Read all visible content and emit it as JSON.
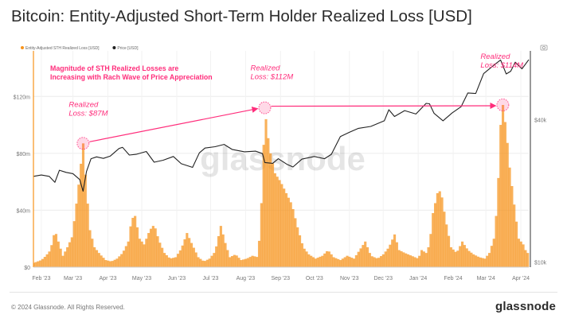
{
  "title": "Bitcoin: Entity-Adjusted Short-Term Holder Realized Loss [USD]",
  "footer": {
    "copyright": "© 2024 Glassnode. All Rights Reserved.",
    "brand": "glassnode"
  },
  "watermark": "glassnode",
  "colors": {
    "loss_bars": "#f7931a",
    "price_line": "#222222",
    "annotation": "#ff2d7b",
    "grid": "#ececec"
  },
  "chart_data": {
    "type": "bar",
    "title": "Bitcoin: Entity-Adjusted Short-Term Holder Realized Loss [USD]",
    "xlabel": "",
    "ylabel": "",
    "x_tick_labels": [
      "Feb '23",
      "Mar '23",
      "Apr '23",
      "May '23",
      "Jun '23",
      "Jul '23",
      "Aug '23",
      "Sep '23",
      "Oct '23",
      "Nov '23",
      "Dec '23",
      "Jan '24",
      "Feb '24",
      "Mar '24",
      "Apr '24"
    ],
    "x_range": [
      "2023-01-25",
      "2024-04-08"
    ],
    "left_axis": {
      "ylim": [
        0,
        152
      ],
      "ticks": [
        0,
        40,
        80,
        120
      ],
      "tick_labels": [
        "$0",
        "$40m",
        "$80m",
        "$120m"
      ]
    },
    "right_axis": {
      "scale": "log",
      "ylim": [
        9500,
        78000
      ],
      "ticks": [
        10000,
        40000
      ],
      "tick_labels": [
        "$10k",
        "$40k"
      ]
    },
    "grid": true,
    "legend": {
      "placement": "top-left"
    },
    "series": [
      {
        "name": "Entity-Adjusted STH Realized Loss [USD]",
        "type": "bar",
        "axis": "left",
        "color": "#f7931a",
        "points": [
          [
            "2023-01-25",
            3
          ],
          [
            "2023-02-01",
            5
          ],
          [
            "2023-02-05",
            8
          ],
          [
            "2023-02-09",
            12
          ],
          [
            "2023-02-13",
            26
          ],
          [
            "2023-02-16",
            18
          ],
          [
            "2023-02-20",
            8
          ],
          [
            "2023-02-24",
            14
          ],
          [
            "2023-02-28",
            21
          ],
          [
            "2023-03-03",
            38
          ],
          [
            "2023-03-06",
            58
          ],
          [
            "2023-03-09",
            80
          ],
          [
            "2023-03-10",
            87
          ],
          [
            "2023-03-13",
            54
          ],
          [
            "2023-03-16",
            26
          ],
          [
            "2023-03-20",
            14
          ],
          [
            "2023-03-25",
            9
          ],
          [
            "2023-03-30",
            5
          ],
          [
            "2023-04-04",
            4
          ],
          [
            "2023-04-09",
            6
          ],
          [
            "2023-04-14",
            10
          ],
          [
            "2023-04-19",
            18
          ],
          [
            "2023-04-22",
            34
          ],
          [
            "2023-04-25",
            36
          ],
          [
            "2023-04-29",
            20
          ],
          [
            "2023-05-03",
            16
          ],
          [
            "2023-05-08",
            26
          ],
          [
            "2023-05-12",
            30
          ],
          [
            "2023-05-16",
            19
          ],
          [
            "2023-05-21",
            10
          ],
          [
            "2023-05-26",
            6
          ],
          [
            "2023-05-31",
            7
          ],
          [
            "2023-06-05",
            13
          ],
          [
            "2023-06-10",
            24
          ],
          [
            "2023-06-14",
            17
          ],
          [
            "2023-06-20",
            7
          ],
          [
            "2023-06-25",
            4
          ],
          [
            "2023-06-30",
            6
          ],
          [
            "2023-07-05",
            11
          ],
          [
            "2023-07-10",
            29
          ],
          [
            "2023-07-14",
            17
          ],
          [
            "2023-07-18",
            7
          ],
          [
            "2023-07-23",
            9
          ],
          [
            "2023-07-28",
            5
          ],
          [
            "2023-08-02",
            6
          ],
          [
            "2023-08-07",
            8
          ],
          [
            "2023-08-12",
            7
          ],
          [
            "2023-08-14",
            30
          ],
          [
            "2023-08-16",
            60
          ],
          [
            "2023-08-18",
            112
          ],
          [
            "2023-08-20",
            96
          ],
          [
            "2023-08-23",
            80
          ],
          [
            "2023-08-27",
            66
          ],
          [
            "2023-09-01",
            60
          ],
          [
            "2023-09-06",
            52
          ],
          [
            "2023-09-11",
            44
          ],
          [
            "2023-09-16",
            28
          ],
          [
            "2023-09-21",
            14
          ],
          [
            "2023-09-26",
            9
          ],
          [
            "2023-10-02",
            6
          ],
          [
            "2023-10-08",
            8
          ],
          [
            "2023-10-13",
            12
          ],
          [
            "2023-10-18",
            7
          ],
          [
            "2023-10-24",
            5
          ],
          [
            "2023-10-30",
            8
          ],
          [
            "2023-11-05",
            6
          ],
          [
            "2023-11-10",
            12
          ],
          [
            "2023-11-15",
            18
          ],
          [
            "2023-11-20",
            8
          ],
          [
            "2023-11-26",
            6
          ],
          [
            "2023-12-01",
            9
          ],
          [
            "2023-12-06",
            14
          ],
          [
            "2023-12-11",
            23
          ],
          [
            "2023-12-15",
            12
          ],
          [
            "2023-12-20",
            10
          ],
          [
            "2023-12-26",
            8
          ],
          [
            "2024-01-01",
            6
          ],
          [
            "2024-01-04",
            12
          ],
          [
            "2024-01-08",
            10
          ],
          [
            "2024-01-11",
            16
          ],
          [
            "2024-01-14",
            38
          ],
          [
            "2024-01-18",
            52
          ],
          [
            "2024-01-21",
            54
          ],
          [
            "2024-01-25",
            34
          ],
          [
            "2024-01-30",
            14
          ],
          [
            "2024-02-04",
            10
          ],
          [
            "2024-02-09",
            18
          ],
          [
            "2024-02-14",
            12
          ],
          [
            "2024-02-19",
            9
          ],
          [
            "2024-02-24",
            7
          ],
          [
            "2024-02-29",
            6
          ],
          [
            "2024-03-04",
            10
          ],
          [
            "2024-03-08",
            20
          ],
          [
            "2024-03-11",
            44
          ],
          [
            "2024-03-14",
            100
          ],
          [
            "2024-03-16",
            114
          ],
          [
            "2024-03-19",
            96
          ],
          [
            "2024-03-22",
            70
          ],
          [
            "2024-03-26",
            44
          ],
          [
            "2024-03-30",
            20
          ],
          [
            "2024-04-03",
            16
          ],
          [
            "2024-04-06",
            10
          ]
        ]
      },
      {
        "name": "Price [USD]",
        "type": "line",
        "axis": "right",
        "color": "#222222",
        "points": [
          [
            "2023-01-25",
            23000
          ],
          [
            "2023-02-01",
            23300
          ],
          [
            "2023-02-08",
            23000
          ],
          [
            "2023-02-13",
            21700
          ],
          [
            "2023-02-17",
            24400
          ],
          [
            "2023-02-23",
            23900
          ],
          [
            "2023-03-01",
            23600
          ],
          [
            "2023-03-07",
            22300
          ],
          [
            "2023-03-10",
            19900
          ],
          [
            "2023-03-13",
            24100
          ],
          [
            "2023-03-17",
            27300
          ],
          [
            "2023-03-22",
            27800
          ],
          [
            "2023-03-28",
            27400
          ],
          [
            "2023-04-03",
            28000
          ],
          [
            "2023-04-11",
            30200
          ],
          [
            "2023-04-14",
            30500
          ],
          [
            "2023-04-20",
            28300
          ],
          [
            "2023-04-26",
            28500
          ],
          [
            "2023-05-05",
            29300
          ],
          [
            "2023-05-12",
            26400
          ],
          [
            "2023-05-20",
            26900
          ],
          [
            "2023-05-29",
            27900
          ],
          [
            "2023-06-05",
            26000
          ],
          [
            "2023-06-15",
            25100
          ],
          [
            "2023-06-21",
            28900
          ],
          [
            "2023-06-26",
            30300
          ],
          [
            "2023-07-05",
            30700
          ],
          [
            "2023-07-13",
            31400
          ],
          [
            "2023-07-20",
            29900
          ],
          [
            "2023-07-31",
            29200
          ],
          [
            "2023-08-10",
            29400
          ],
          [
            "2023-08-16",
            28700
          ],
          [
            "2023-08-18",
            26300
          ],
          [
            "2023-08-25",
            26100
          ],
          [
            "2023-08-30",
            27300
          ],
          [
            "2023-09-07",
            25800
          ],
          [
            "2023-09-12",
            25200
          ],
          [
            "2023-09-20",
            27200
          ],
          [
            "2023-10-01",
            27900
          ],
          [
            "2023-10-10",
            27300
          ],
          [
            "2023-10-16",
            28500
          ],
          [
            "2023-10-24",
            33900
          ],
          [
            "2023-11-01",
            35300
          ],
          [
            "2023-11-09",
            36700
          ],
          [
            "2023-11-20",
            37400
          ],
          [
            "2023-12-02",
            39500
          ],
          [
            "2023-12-06",
            44000
          ],
          [
            "2023-12-11",
            41200
          ],
          [
            "2023-12-20",
            43600
          ],
          [
            "2023-12-30",
            42200
          ],
          [
            "2024-01-08",
            46800
          ],
          [
            "2024-01-11",
            46600
          ],
          [
            "2024-01-15",
            42500
          ],
          [
            "2024-01-23",
            39500
          ],
          [
            "2024-01-31",
            42600
          ],
          [
            "2024-02-08",
            45300
          ],
          [
            "2024-02-14",
            51800
          ],
          [
            "2024-02-21",
            51500
          ],
          [
            "2024-02-28",
            62500
          ],
          [
            "2024-03-05",
            66000
          ],
          [
            "2024-03-10",
            69000
          ],
          [
            "2024-03-14",
            71400
          ],
          [
            "2024-03-19",
            62300
          ],
          [
            "2024-03-23",
            64000
          ],
          [
            "2024-03-27",
            69900
          ],
          [
            "2024-04-02",
            65500
          ],
          [
            "2024-04-08",
            71600
          ]
        ]
      }
    ],
    "annotations": [
      {
        "type": "text",
        "text": "Magnitude of STH Realized Losses are\nIncreasing with Rach Wave of Price Appreciation"
      },
      {
        "type": "callout",
        "date": "2023-03-10",
        "value": 87,
        "label": "Realized\nLoss: $87M"
      },
      {
        "type": "callout",
        "date": "2023-08-18",
        "value": 112,
        "label": "Realized\nLoss: $112M"
      },
      {
        "type": "callout",
        "date": "2024-03-16",
        "value": 114,
        "label": "Realized\nLoss: $114M"
      },
      {
        "type": "arrow",
        "from": [
          "2023-03-10",
          87
        ],
        "to": [
          "2023-08-18",
          112
        ]
      },
      {
        "type": "arrow",
        "from": [
          "2023-08-18",
          112
        ],
        "to": [
          "2024-03-16",
          114
        ]
      }
    ]
  }
}
